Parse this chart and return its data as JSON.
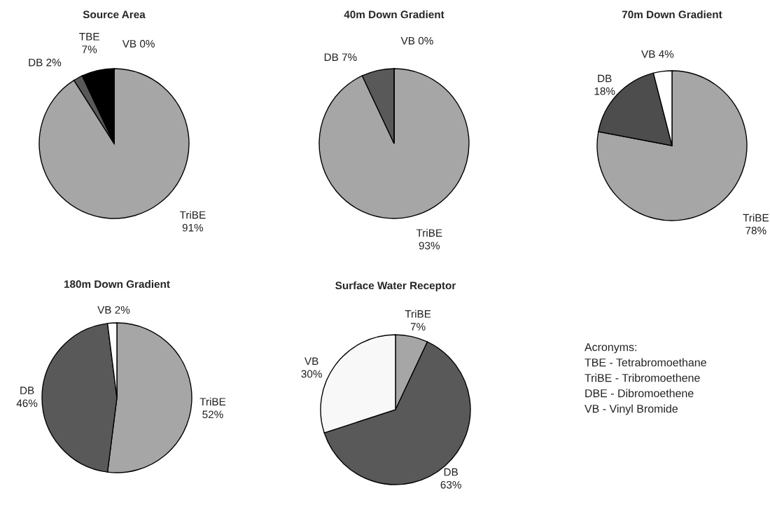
{
  "chart_data": [
    {
      "type": "pie",
      "title": "Source Area",
      "categories": [
        "TriBE",
        "DB",
        "TBE",
        "VB"
      ],
      "values": [
        91,
        2,
        7,
        0
      ],
      "colors": [
        "#a6a6a6",
        "#595959",
        "#000000",
        "#ffffff"
      ],
      "value_labels": [
        "91%",
        "2%",
        "7%",
        "0%"
      ]
    },
    {
      "type": "pie",
      "title": "40m Down Gradient",
      "categories": [
        "TriBE",
        "DB",
        "VB"
      ],
      "values": [
        93,
        7,
        0
      ],
      "colors": [
        "#a6a6a6",
        "#595959",
        "#ffffff"
      ],
      "value_labels": [
        "93%",
        "7%",
        "0%"
      ]
    },
    {
      "type": "pie",
      "title": "70m Down Gradient",
      "categories": [
        "TriBE",
        "DB",
        "VB"
      ],
      "values": [
        78,
        18,
        4
      ],
      "colors": [
        "#a6a6a6",
        "#4d4d4d",
        "#ffffff"
      ],
      "value_labels": [
        "78%",
        "18%",
        "4%"
      ]
    },
    {
      "type": "pie",
      "title": "180m Down Gradient",
      "categories": [
        "TriBE",
        "DB",
        "VB"
      ],
      "values": [
        52,
        46,
        2
      ],
      "colors": [
        "#a6a6a6",
        "#595959",
        "#ffffff"
      ],
      "value_labels": [
        "52%",
        "46%",
        "2%"
      ]
    },
    {
      "type": "pie",
      "title": "Surface Water Receptor",
      "categories": [
        "TriBE",
        "DB",
        "VB"
      ],
      "values": [
        7,
        63,
        30
      ],
      "colors": [
        "#a6a6a6",
        "#595959",
        "#f8f8f8"
      ],
      "value_labels": [
        "7%",
        "63%",
        "30%"
      ]
    },
    {
      "type": "other",
      "title": "Acronyms:",
      "annotations": [
        "TBE - Tetrabromoethane",
        "TriBE - Tribromoethene",
        "DBE - Dibromoethene",
        "VB - Vinyl Bromide"
      ]
    }
  ]
}
